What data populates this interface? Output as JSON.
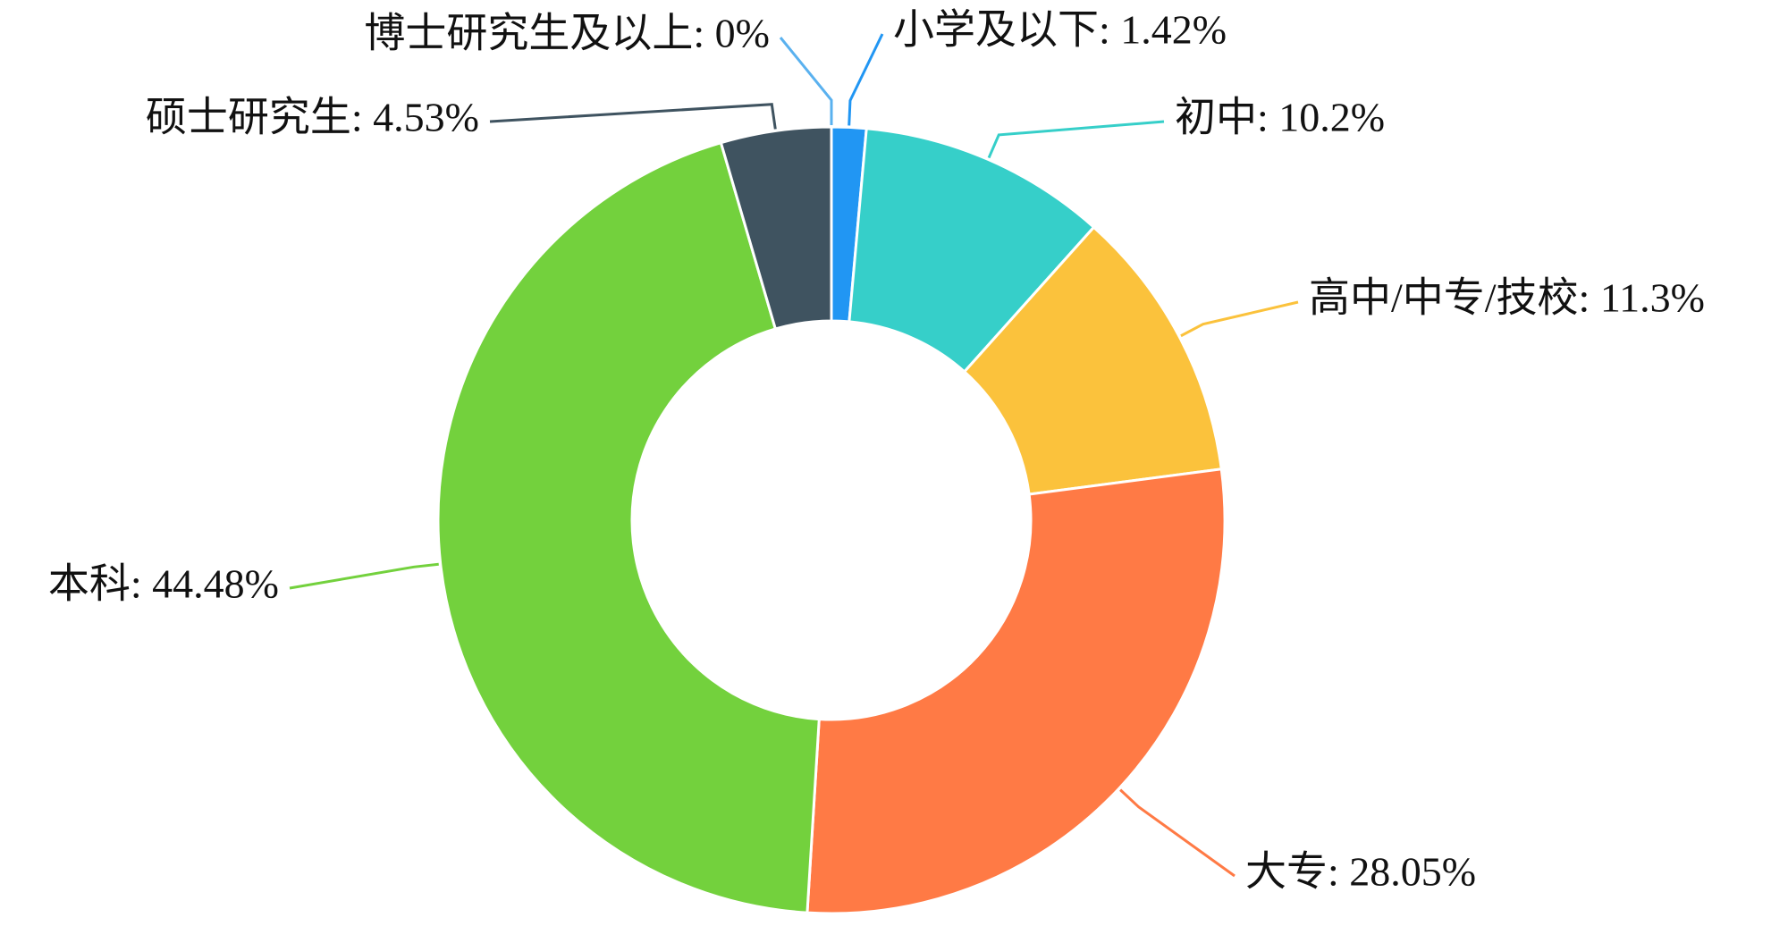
{
  "chart_data": {
    "type": "donut",
    "values": [
      1.42,
      10.2,
      11.3,
      28.05,
      44.48,
      4.53,
      0
    ],
    "value_labels": [
      "小学及以下: 1.42%",
      "初中: 10.2%",
      "高中/中专/技校: 11.3%",
      "大专: 28.05%",
      "本科: 44.48%",
      "硕士研究生: 4.53%",
      "博士研究生及以上: 0%"
    ],
    "colors": [
      "#2196f3",
      "#36cfc9",
      "#fbc23c",
      "#ff7a45",
      "#73d13d",
      "#3f5360",
      "#5ab1ef"
    ]
  }
}
